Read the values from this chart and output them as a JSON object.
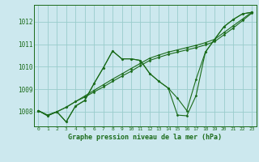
{
  "title": "Graphe pression niveau de la mer (hPa)",
  "background_color": "#cce8ee",
  "grid_color": "#99cccc",
  "line_color": "#1a6b1a",
  "xlim": [
    -0.5,
    23.5
  ],
  "ylim": [
    1007.35,
    1012.75
  ],
  "yticks": [
    1008,
    1009,
    1010,
    1011,
    1012
  ],
  "xticks": [
    0,
    1,
    2,
    3,
    4,
    5,
    6,
    7,
    8,
    9,
    10,
    11,
    12,
    13,
    14,
    15,
    16,
    17,
    18,
    19,
    20,
    21,
    22,
    23
  ],
  "s_linear1": [
    1008.05,
    1007.85,
    1008.0,
    1008.2,
    1008.45,
    1008.7,
    1008.95,
    1009.2,
    1009.45,
    1009.68,
    1009.92,
    1010.15,
    1010.38,
    1010.52,
    1010.65,
    1010.75,
    1010.85,
    1010.95,
    1011.07,
    1011.22,
    1011.52,
    1011.82,
    1012.12,
    1012.42
  ],
  "s_linear2": [
    1008.05,
    1007.85,
    1008.0,
    1008.2,
    1008.45,
    1008.65,
    1008.88,
    1009.1,
    1009.35,
    1009.58,
    1009.8,
    1010.05,
    1010.28,
    1010.42,
    1010.55,
    1010.65,
    1010.75,
    1010.85,
    1010.97,
    1011.12,
    1011.42,
    1011.72,
    1012.05,
    1012.38
  ],
  "s_peak": [
    1008.05,
    1007.82,
    1008.0,
    1007.55,
    1008.25,
    1008.5,
    1009.25,
    1009.95,
    1010.7,
    1010.35,
    1010.35,
    1010.28,
    1009.7,
    1009.35,
    1009.05,
    1008.6,
    1008.05,
    1009.45,
    1010.65,
    1011.22,
    1011.78,
    1012.1,
    1012.35,
    1012.42
  ],
  "s_dip": [
    1008.05,
    1007.82,
    1008.0,
    1007.55,
    1008.25,
    1008.5,
    1009.25,
    1009.95,
    1010.7,
    1010.35,
    1010.35,
    1010.28,
    1009.7,
    1009.35,
    1009.05,
    1007.85,
    1007.82,
    1008.72,
    1010.65,
    1011.22,
    1011.78,
    1012.1,
    1012.35,
    1012.42
  ]
}
